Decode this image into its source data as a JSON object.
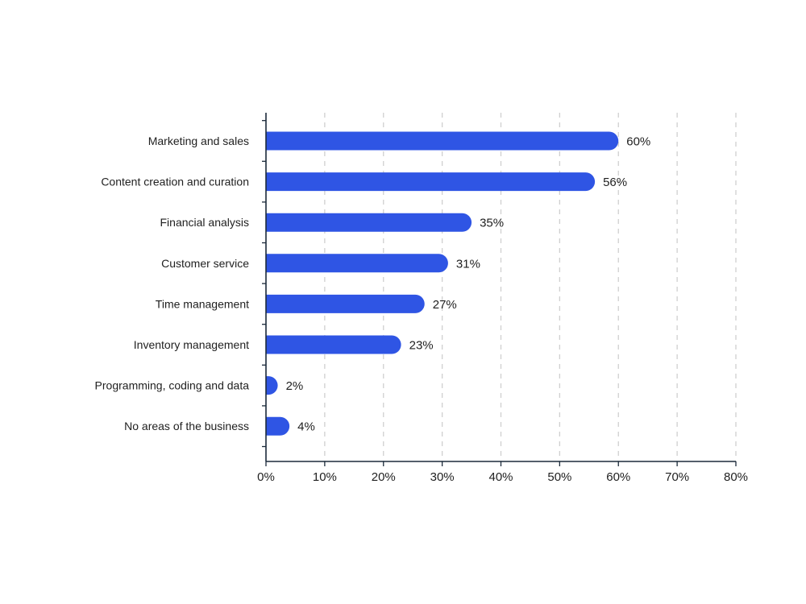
{
  "chart_data": {
    "type": "bar",
    "orientation": "horizontal",
    "categories": [
      "Marketing and sales",
      "Content creation and curation",
      "Financial analysis",
      "Customer service",
      "Time management",
      "Inventory management",
      "Programming, coding and data",
      "No areas of the business"
    ],
    "values": [
      60,
      56,
      35,
      31,
      27,
      23,
      2,
      4
    ],
    "value_labels": [
      "60%",
      "56%",
      "35%",
      "31%",
      "27%",
      "23%",
      "2%",
      "4%"
    ],
    "x_ticks": [
      0,
      10,
      20,
      30,
      40,
      50,
      60,
      70,
      80
    ],
    "x_tick_labels": [
      "0%",
      "10%",
      "20%",
      "30%",
      "40%",
      "50%",
      "60%",
      "70%",
      "80%"
    ],
    "xlim": [
      0,
      80
    ],
    "title": "",
    "xlabel": "",
    "ylabel": "",
    "grid": "vertical dashed",
    "legend": "none",
    "colors": {
      "bar": "#2f55e4",
      "axis": "#1b2a3a",
      "grid": "#cfcfcf",
      "text": "#1f1f1f"
    }
  }
}
